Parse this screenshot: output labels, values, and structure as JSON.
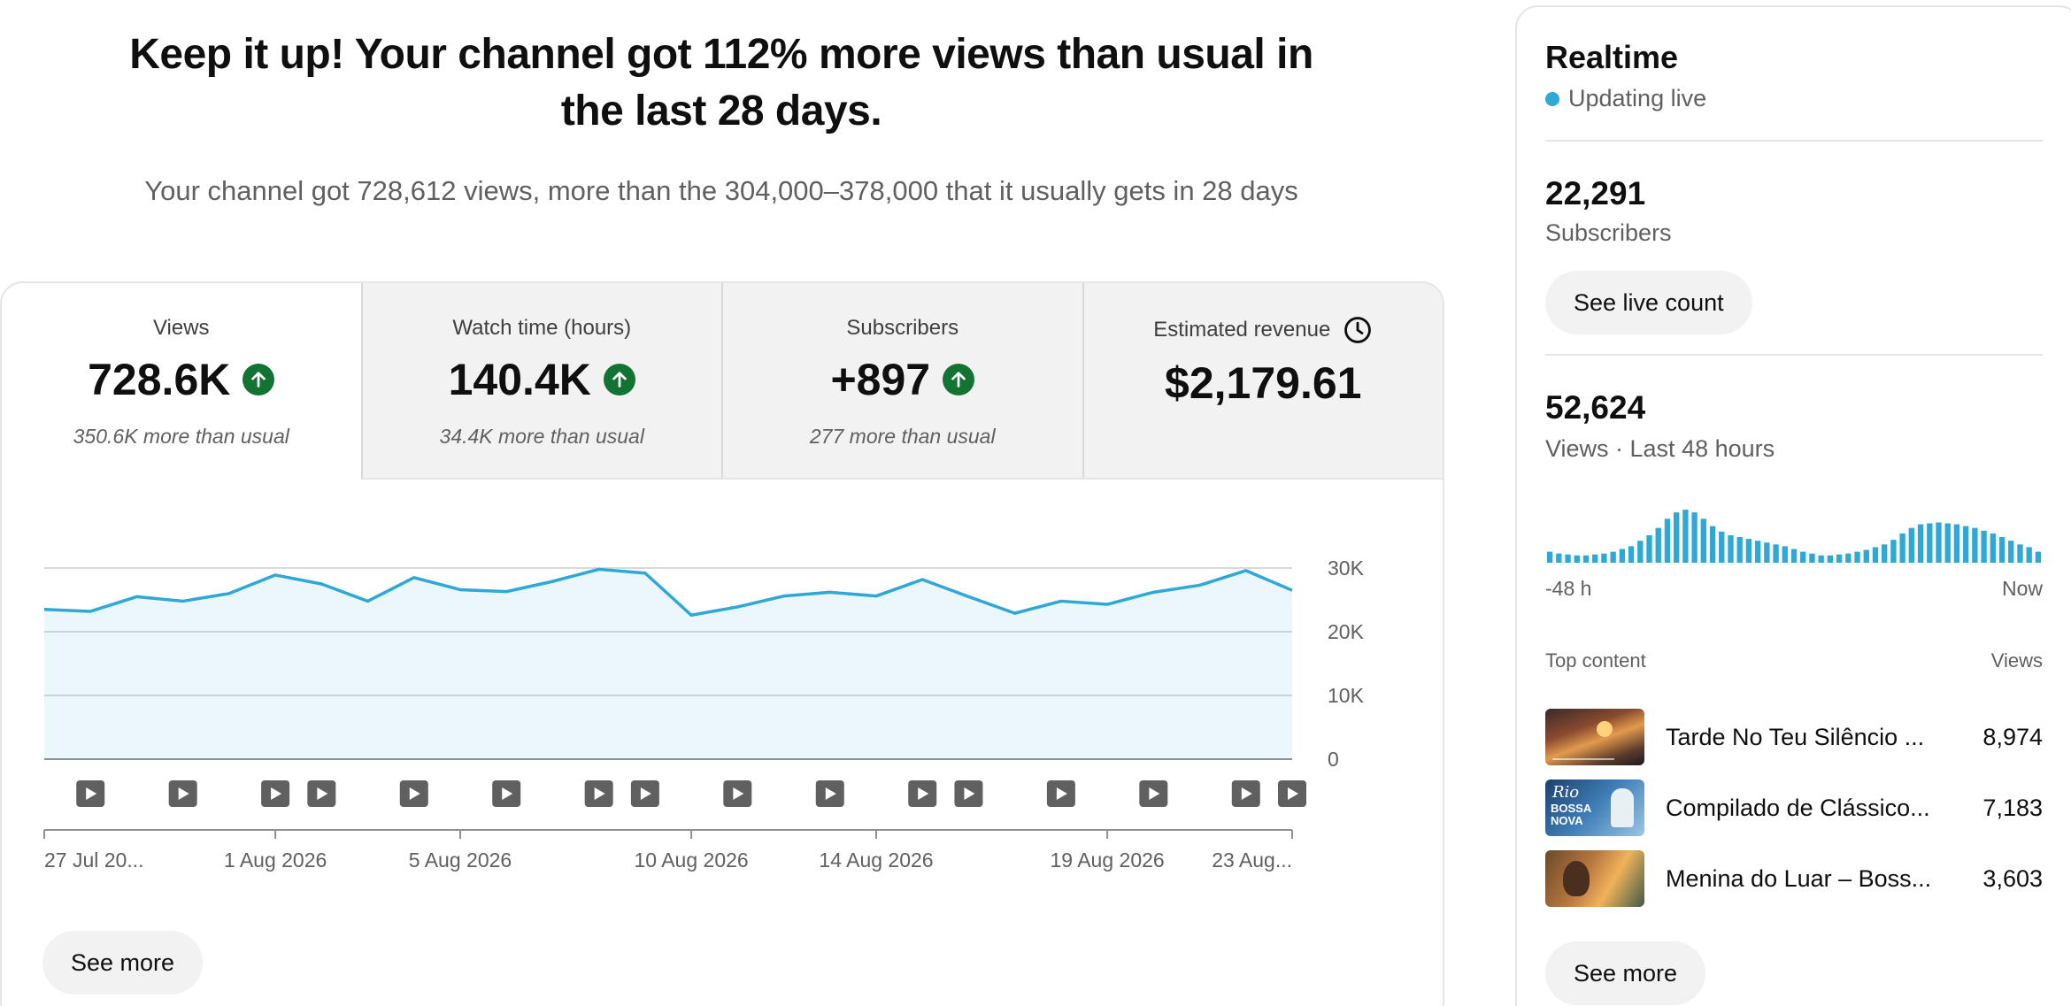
{
  "headline": "Keep it up! Your channel got 112% more views than usual in the last 28 days.",
  "subline": "Your channel got 728,612 views, more than the 304,000–378,000 that it usually gets in 28 days",
  "metrics": [
    {
      "title": "Views",
      "value": "728.6K",
      "note": "350.6K more than usual",
      "trend": "up"
    },
    {
      "title": "Watch time (hours)",
      "value": "140.4K",
      "note": "34.4K more than usual",
      "trend": "up"
    },
    {
      "title": "Subscribers",
      "value": "+897",
      "note": "277 more than usual",
      "trend": "up"
    },
    {
      "title": "Estimated revenue",
      "value": "$2,179.61",
      "note": "",
      "trend": "none"
    }
  ],
  "chart_data": {
    "type": "area",
    "title": "",
    "xlabel": "",
    "ylabel": "",
    "ylim": [
      0,
      30000
    ],
    "yticks": [
      {
        "label": "30K",
        "value": 30000
      },
      {
        "label": "20K",
        "value": 20000
      },
      {
        "label": "10K",
        "value": 10000
      },
      {
        "label": "0",
        "value": 0
      }
    ],
    "x": [
      "27 Jul 2026",
      "28 Jul 2026",
      "29 Jul 2026",
      "30 Jul 2026",
      "31 Jul 2026",
      "1 Aug 2026",
      "2 Aug 2026",
      "3 Aug 2026",
      "4 Aug 2026",
      "5 Aug 2026",
      "6 Aug 2026",
      "7 Aug 2026",
      "8 Aug 2026",
      "9 Aug 2026",
      "10 Aug 2026",
      "11 Aug 2026",
      "12 Aug 2026",
      "13 Aug 2026",
      "14 Aug 2026",
      "15 Aug 2026",
      "16 Aug 2026",
      "17 Aug 2026",
      "18 Aug 2026",
      "19 Aug 2026",
      "20 Aug 2026",
      "21 Aug 2026",
      "22 Aug 2026",
      "23 Aug 2026"
    ],
    "series": [
      {
        "values": [
          23500,
          23200,
          25500,
          24800,
          26000,
          28900,
          27500,
          24800,
          28500,
          26600,
          26300,
          27900,
          29800,
          29200,
          22600,
          23900,
          25600,
          26200,
          25600,
          28200,
          25500,
          22900,
          24800,
          24300,
          26200,
          27300,
          29600,
          26500
        ]
      }
    ],
    "xtick_labels": [
      {
        "label": "27 Jul 20...",
        "index": 0
      },
      {
        "label": "1 Aug 2026",
        "index": 5
      },
      {
        "label": "5 Aug 2026",
        "index": 9
      },
      {
        "label": "10 Aug 2026",
        "index": 14
      },
      {
        "label": "14 Aug 2026",
        "index": 18
      },
      {
        "label": "19 Aug 2026",
        "index": 23
      },
      {
        "label": "23 Aug...",
        "index": 27
      }
    ],
    "video_markers": [
      1,
      3,
      5,
      6,
      8,
      10,
      12,
      13,
      15,
      17,
      19,
      20,
      22,
      24,
      26,
      27
    ],
    "grid": true,
    "color": "#2ea7d9"
  },
  "see_more_label": "See more",
  "realtime": {
    "title": "Realtime",
    "live_label": "Updating live",
    "subscribers_value": "22,291",
    "subscribers_label": "Subscribers",
    "live_count_button": "See live count",
    "views_value": "52,624",
    "views_label": "Views · Last 48 hours",
    "axis_left": "-48 h",
    "axis_right": "Now",
    "bars": [
      12,
      10,
      9,
      8,
      8,
      9,
      10,
      12,
      15,
      18,
      24,
      30,
      38,
      48,
      55,
      58,
      55,
      48,
      40,
      34,
      30,
      28,
      26,
      24,
      22,
      20,
      18,
      15,
      12,
      10,
      8,
      8,
      9,
      10,
      12,
      14,
      17,
      20,
      25,
      32,
      38,
      42,
      43,
      44,
      43,
      42,
      40,
      38,
      35,
      32,
      28,
      24,
      20,
      17,
      12
    ],
    "top_content_label": "Top content",
    "views_col_label": "Views",
    "top_content": [
      {
        "title": "Tarde No Teu Silêncio ...",
        "views": "8,974"
      },
      {
        "title": "Compilado de Clássico...",
        "views": "7,183"
      },
      {
        "title": "Menina do Luar – Boss...",
        "views": "3,603"
      }
    ],
    "thumb2_text_top": "Rio",
    "thumb2_text_a": "BOSSA",
    "thumb2_text_b": "NOVA",
    "see_more_label": "See more"
  },
  "colors": {
    "accent": "#2ea7d9",
    "up": "#137333",
    "text": "#0f0f0f",
    "muted": "#606060"
  }
}
